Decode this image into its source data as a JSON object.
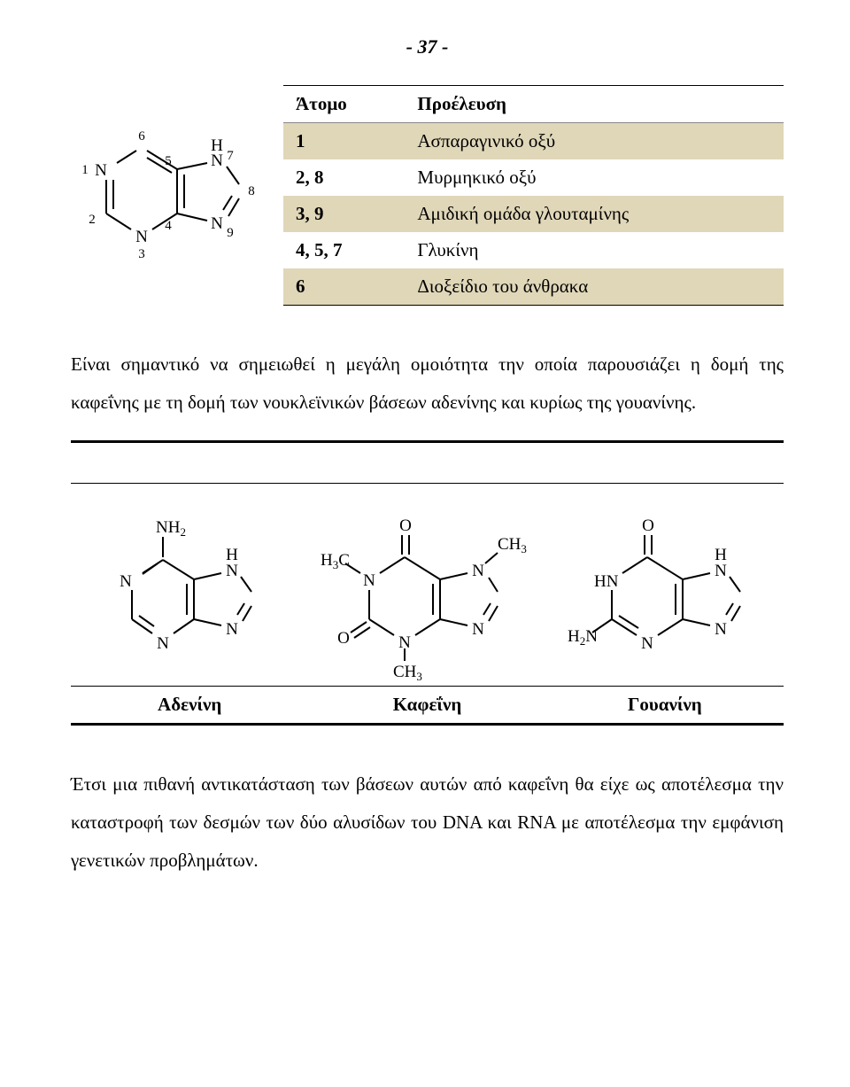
{
  "page_number": "- 37 -",
  "purine": {
    "atoms": {
      "N1": {
        "label": "N",
        "num": "1"
      },
      "C2": {
        "num": "2"
      },
      "N3": {
        "label": "N",
        "num": "3"
      },
      "C4": {
        "num": "4"
      },
      "C5": {
        "num": "5"
      },
      "C6": {
        "num": "6"
      },
      "N7": {
        "label": "N",
        "num": "7",
        "h": "H"
      },
      "C8": {
        "num": "8"
      },
      "N9": {
        "label": "N",
        "num": "9"
      }
    }
  },
  "origin_table": {
    "headers": [
      "Άτομο",
      "Προέλευση"
    ],
    "rows": [
      {
        "atom": "1",
        "source": "Ασπαραγινικό οξύ",
        "bg": "#e0d7b9"
      },
      {
        "atom": "2, 8",
        "source": "Μυρμηκικό οξύ",
        "bg": "#ffffff"
      },
      {
        "atom": "3, 9",
        "source": "Αμιδική ομάδα γλουταμίνης",
        "bg": "#e0d7b9"
      },
      {
        "atom": "4, 5, 7",
        "source": "Γλυκίνη",
        "bg": "#ffffff"
      },
      {
        "atom": "6",
        "source": "Διοξείδιο του άνθρακα",
        "bg": "#e0d7b9"
      }
    ]
  },
  "paragraph1": "Είναι σημαντικό να σημειωθεί η μεγάλη ομοιότητα την οποία παρουσιάζει η δομή της καφεΐνης με τη δομή των νουκλεϊνικών βάσεων αδενίνης και κυρίως της γουανίνης.",
  "structures": {
    "adenine": {
      "caption": "Αδενίνη",
      "labels": {
        "NH2": "NH",
        "NH2_sub": "2",
        "H": "H",
        "N": "N"
      }
    },
    "caffeine": {
      "caption": "Καφεΐνη",
      "labels": {
        "O": "O",
        "CH3": "CH",
        "CH3_sub": "3",
        "H3C": "H",
        "H3C_sub": "3",
        "H3C_tail": "C",
        "N": "N"
      }
    },
    "guanine": {
      "caption": "Γουανίνη",
      "labels": {
        "O": "O",
        "H": "H",
        "HN": "HN",
        "H2N": "H",
        "H2N_sub": "2",
        "H2N_tail": "N",
        "N": "N"
      }
    }
  },
  "paragraph2": "Έτσι μια πιθανή αντικατάσταση των βάσεων αυτών από καφεΐνη θα είχε ως αποτέλεσμα την καταστροφή των δεσμών των δύο αλυσίδων του DNA και RNA με αποτέλεσμα την εμφάνιση γενετικών προβλημάτων.",
  "colors": {
    "text": "#000000",
    "stroke": "#000000",
    "bg": "#ffffff"
  }
}
